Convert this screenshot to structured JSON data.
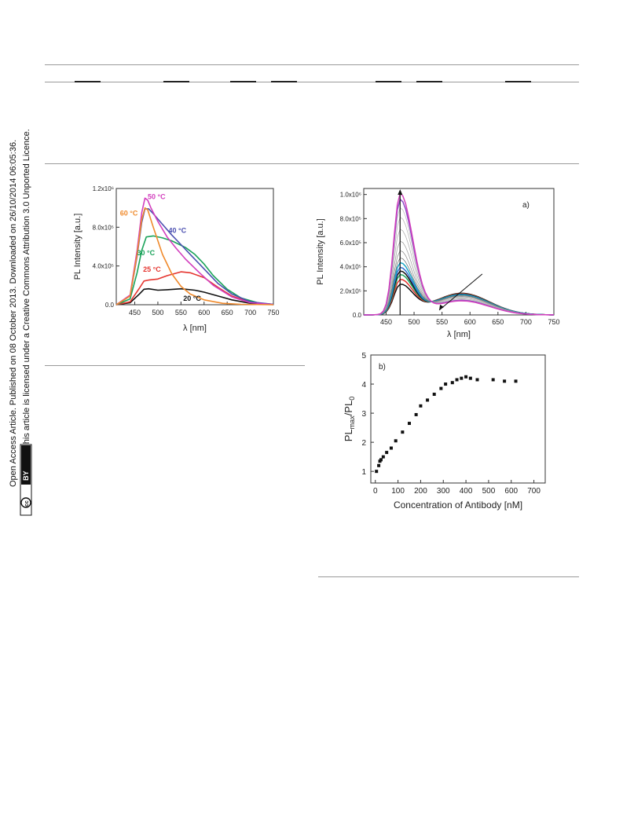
{
  "sidebar": {
    "line1": "Open Access Article. Published on 08 October 2013. Downloaded on 26/10/2014 06:05:36.",
    "line2": "This article is licensed under a Creative Commons Attribution 3.0 Unported Licence.",
    "license_badge": "BY",
    "cc_badge": "cc"
  },
  "chart_data": [
    {
      "type": "line",
      "xlabel": "λ [nm]",
      "ylabel": "PL Intensity [a.u.]",
      "xlim": [
        410,
        750
      ],
      "ylim": [
        0,
        1200000
      ],
      "xticks": [
        "450",
        "500",
        "550",
        "600",
        "650",
        "700",
        "750"
      ],
      "yticks": [
        "0.0",
        "4.0x10⁵",
        "8.0x10⁵",
        "1.2x10⁶"
      ],
      "series": [
        {
          "name": "20 °C",
          "color": "#111111",
          "x": [
            410,
            440,
            460,
            470,
            480,
            500,
            520,
            550,
            580,
            600,
            630,
            660,
            700,
            750
          ],
          "y": [
            0,
            20000,
            110000,
            160000,
            165000,
            150000,
            155000,
            165000,
            150000,
            130000,
            90000,
            50000,
            15000,
            2000
          ]
        },
        {
          "name": "25 °C",
          "color": "#e5352f",
          "x": [
            410,
            440,
            460,
            470,
            480,
            500,
            520,
            550,
            570,
            600,
            630,
            660,
            700,
            750
          ],
          "y": [
            0,
            30000,
            170000,
            245000,
            255000,
            265000,
            300000,
            340000,
            330000,
            280000,
            180000,
            90000,
            25000,
            3000
          ]
        },
        {
          "name": "30 °C",
          "color": "#1aa35a",
          "x": [
            410,
            440,
            455,
            465,
            475,
            490,
            510,
            530,
            560,
            580,
            600,
            620,
            650,
            680,
            720,
            750
          ],
          "y": [
            0,
            60000,
            330000,
            560000,
            700000,
            710000,
            690000,
            660000,
            590000,
            520000,
            420000,
            300000,
            160000,
            70000,
            15000,
            3000
          ]
        },
        {
          "name": "40 °C",
          "color": "#4a4fb0",
          "x": [
            410,
            440,
            455,
            465,
            472,
            480,
            490,
            510,
            530,
            550,
            570,
            600,
            630,
            660,
            700,
            750
          ],
          "y": [
            0,
            90000,
            500000,
            850000,
            990000,
            990000,
            940000,
            830000,
            720000,
            620000,
            520000,
            370000,
            220000,
            110000,
            30000,
            3000
          ]
        },
        {
          "name": "50 °C",
          "color": "#d23fbd",
          "x": [
            410,
            440,
            455,
            465,
            472,
            478,
            485,
            500,
            520,
            540,
            560,
            590,
            620,
            660,
            700,
            750
          ],
          "y": [
            0,
            100000,
            560000,
            950000,
            1100000,
            1080000,
            1000000,
            860000,
            700000,
            580000,
            470000,
            330000,
            200000,
            80000,
            20000,
            2000
          ]
        },
        {
          "name": "60 °C",
          "color": "#f08a2c",
          "x": [
            410,
            440,
            455,
            465,
            472,
            478,
            490,
            510,
            530,
            550,
            570,
            600,
            640,
            680,
            750
          ],
          "y": [
            0,
            90000,
            520000,
            880000,
            1000000,
            980000,
            800000,
            520000,
            320000,
            190000,
            110000,
            50000,
            15000,
            4000,
            0
          ]
        }
      ]
    },
    {
      "type": "line",
      "panel_label": "a)",
      "xlabel": "λ [nm]",
      "ylabel": "PL Intensity [a.u.]",
      "xlim": [
        410,
        750
      ],
      "ylim": [
        0,
        1050000
      ],
      "xticks": [
        "450",
        "500",
        "550",
        "600",
        "650",
        "700",
        "750"
      ],
      "yticks": [
        "0.0",
        "2.0x10⁵",
        "4.0x10⁵",
        "6.0x10⁵",
        "8.0x10⁵",
        "1.0x10⁶"
      ],
      "peaks": [
        240000,
        280000,
        320000,
        350000,
        380000,
        420000,
        460000,
        520000,
        600000,
        700000,
        800000,
        880000,
        950000,
        1000000
      ],
      "colors": [
        "#111111",
        "#e5352f",
        "#1aa35a",
        "#111111",
        "#2f6fd0",
        "#1aa6c4",
        "#6a6a6a",
        "#888888",
        "#999999",
        "#aaaaaa",
        "#b0b0b0",
        "#b8b8b8",
        "#8d4bc7",
        "#d23fbd"
      ]
    },
    {
      "type": "scatter",
      "panel_label": "b)",
      "xlabel": "Concentration of Antibody [nM]",
      "ylabel_main": "PL",
      "ylabel_sub1": "max",
      "ylabel_slash": "/PL",
      "ylabel_sub2": "0",
      "xlim": [
        -20,
        750
      ],
      "ylim": [
        0.6,
        5
      ],
      "xticks": [
        "0",
        "100",
        "200",
        "300",
        "400",
        "500",
        "600",
        "700"
      ],
      "yticks": [
        "1",
        "2",
        "3",
        "4",
        "5"
      ],
      "x": [
        5,
        15,
        20,
        25,
        35,
        50,
        70,
        90,
        120,
        150,
        180,
        200,
        230,
        260,
        290,
        310,
        340,
        360,
        380,
        400,
        420,
        450,
        520,
        570,
        620
      ],
      "y": [
        1.0,
        1.2,
        1.35,
        1.4,
        1.5,
        1.65,
        1.8,
        2.05,
        2.35,
        2.65,
        2.95,
        3.25,
        3.45,
        3.65,
        3.85,
        4.0,
        4.05,
        4.15,
        4.2,
        4.25,
        4.2,
        4.15,
        4.15,
        4.1,
        4.1
      ]
    }
  ]
}
